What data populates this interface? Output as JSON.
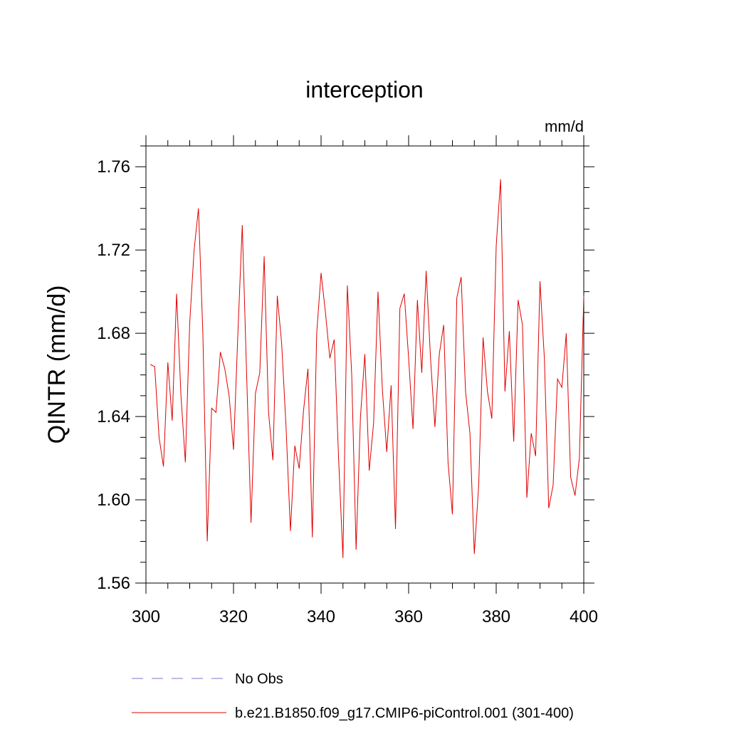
{
  "chart_data": {
    "type": "line",
    "title": "interception",
    "units": "mm/d",
    "ylabel": "QINTR  (mm/d)",
    "xlabel": "",
    "xlim": [
      300,
      400
    ],
    "ylim": [
      1.56,
      1.77
    ],
    "xticks": [
      300,
      320,
      340,
      360,
      380,
      400
    ],
    "xtick_labels": [
      "300",
      "320",
      "340",
      "360",
      "380",
      "400"
    ],
    "xminor_step": 5,
    "yticks": [
      1.56,
      1.6,
      1.64,
      1.68,
      1.72,
      1.76
    ],
    "ytick_labels": [
      "1.56",
      "1.60",
      "1.64",
      "1.68",
      "1.72",
      "1.76"
    ],
    "yminor_step": 0.01,
    "grid": false,
    "legend_position": "bottom-left below plot",
    "series": [
      {
        "name": "No Obs",
        "style": "dashed",
        "color": "#7a7acc",
        "x": [],
        "values": []
      },
      {
        "name": "b.e21.B1850.f09_g17.CMIP6-piControl.001 (301-400)",
        "style": "solid",
        "color": "#e00000",
        "x": [
          301,
          302,
          303,
          304,
          305,
          306,
          307,
          308,
          309,
          310,
          311,
          312,
          313,
          314,
          315,
          316,
          317,
          318,
          319,
          320,
          321,
          322,
          323,
          324,
          325,
          326,
          327,
          328,
          329,
          330,
          331,
          332,
          333,
          334,
          335,
          336,
          337,
          338,
          339,
          340,
          341,
          342,
          343,
          344,
          345,
          346,
          347,
          348,
          349,
          350,
          351,
          352,
          353,
          354,
          355,
          356,
          357,
          358,
          359,
          360,
          361,
          362,
          363,
          364,
          365,
          366,
          367,
          368,
          369,
          370,
          371,
          372,
          373,
          374,
          375,
          376,
          377,
          378,
          379,
          380,
          381,
          382,
          383,
          384,
          385,
          386,
          387,
          388,
          389,
          390,
          391,
          392,
          393,
          394,
          395,
          396,
          397,
          398,
          399,
          400
        ],
        "values": [
          1.665,
          1.664,
          1.63,
          1.616,
          1.666,
          1.638,
          1.699,
          1.65,
          1.618,
          1.685,
          1.72,
          1.74,
          1.68,
          1.58,
          1.644,
          1.642,
          1.671,
          1.663,
          1.65,
          1.624,
          1.68,
          1.732,
          1.66,
          1.589,
          1.651,
          1.661,
          1.717,
          1.642,
          1.619,
          1.698,
          1.675,
          1.635,
          1.585,
          1.626,
          1.615,
          1.643,
          1.663,
          1.582,
          1.68,
          1.709,
          1.69,
          1.668,
          1.677,
          1.62,
          1.572,
          1.703,
          1.66,
          1.576,
          1.64,
          1.67,
          1.614,
          1.637,
          1.7,
          1.653,
          1.623,
          1.655,
          1.586,
          1.692,
          1.699,
          1.668,
          1.634,
          1.696,
          1.661,
          1.71,
          1.668,
          1.635,
          1.67,
          1.684,
          1.618,
          1.593,
          1.697,
          1.707,
          1.652,
          1.632,
          1.574,
          1.607,
          1.678,
          1.652,
          1.639,
          1.722,
          1.754,
          1.652,
          1.681,
          1.628,
          1.696,
          1.684,
          1.601,
          1.632,
          1.621,
          1.705,
          1.668,
          1.596,
          1.607,
          1.658,
          1.654,
          1.68,
          1.611,
          1.602,
          1.62,
          1.698
        ]
      }
    ]
  }
}
